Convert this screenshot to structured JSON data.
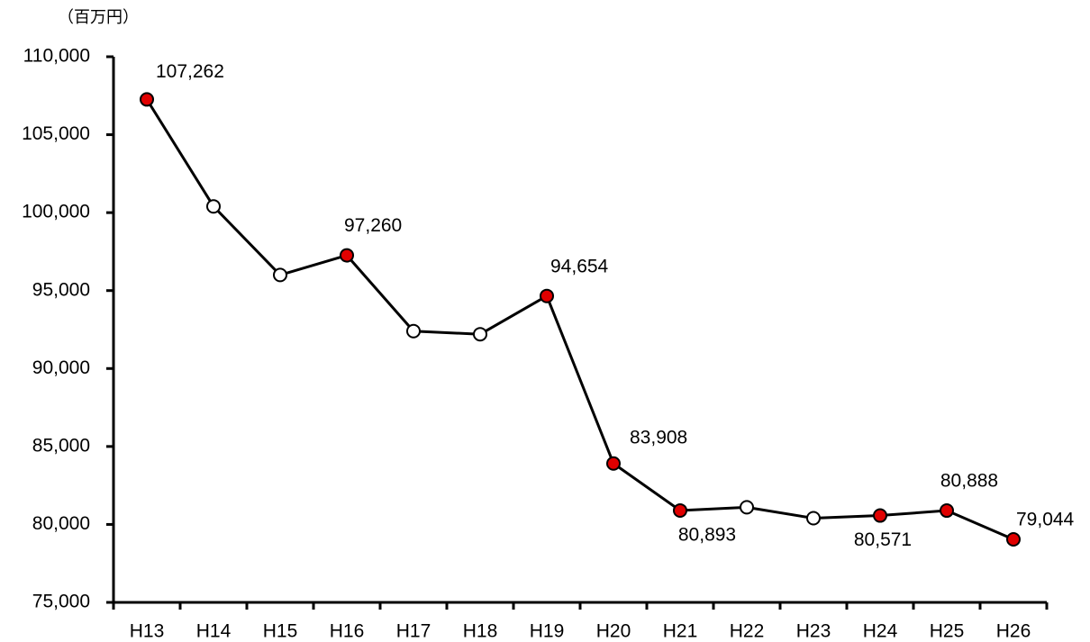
{
  "chart_data": {
    "type": "line",
    "y_label": "（百万円）",
    "categories": [
      "H13",
      "H14",
      "H15",
      "H16",
      "H17",
      "H18",
      "H19",
      "H20",
      "H21",
      "H22",
      "H23",
      "H24",
      "H25",
      "H26"
    ],
    "values": [
      107262,
      100400,
      96000,
      97260,
      92400,
      92200,
      94654,
      83908,
      80893,
      81100,
      80400,
      80571,
      80888,
      79044
    ],
    "value_labels": [
      "107,262",
      null,
      null,
      "97,260",
      null,
      null,
      "94,654",
      "83,908",
      "80,893",
      null,
      null,
      "80,571",
      "80,888",
      "79,044"
    ],
    "color": "#000000",
    "marker_colors": [
      "#e00000",
      "#ffffff",
      "#ffffff",
      "#e00000",
      "#ffffff",
      "#ffffff",
      "#e00000",
      "#e00000",
      "#e00000",
      "#ffffff",
      "#ffffff",
      "#e00000",
      "#e00000",
      "#e00000"
    ],
    "ylim": [
      75000,
      110000
    ],
    "yticks": [
      {
        "value": 75000,
        "label": "75,000"
      },
      {
        "value": 80000,
        "label": "80,000"
      },
      {
        "value": 85000,
        "label": "85,000"
      },
      {
        "value": 90000,
        "label": "90,000"
      },
      {
        "value": 95000,
        "label": "95,000"
      },
      {
        "value": 100000,
        "label": "100,000"
      },
      {
        "value": 105000,
        "label": "105,000"
      },
      {
        "value": 110000,
        "label": "110,000"
      }
    ],
    "grid": false
  }
}
